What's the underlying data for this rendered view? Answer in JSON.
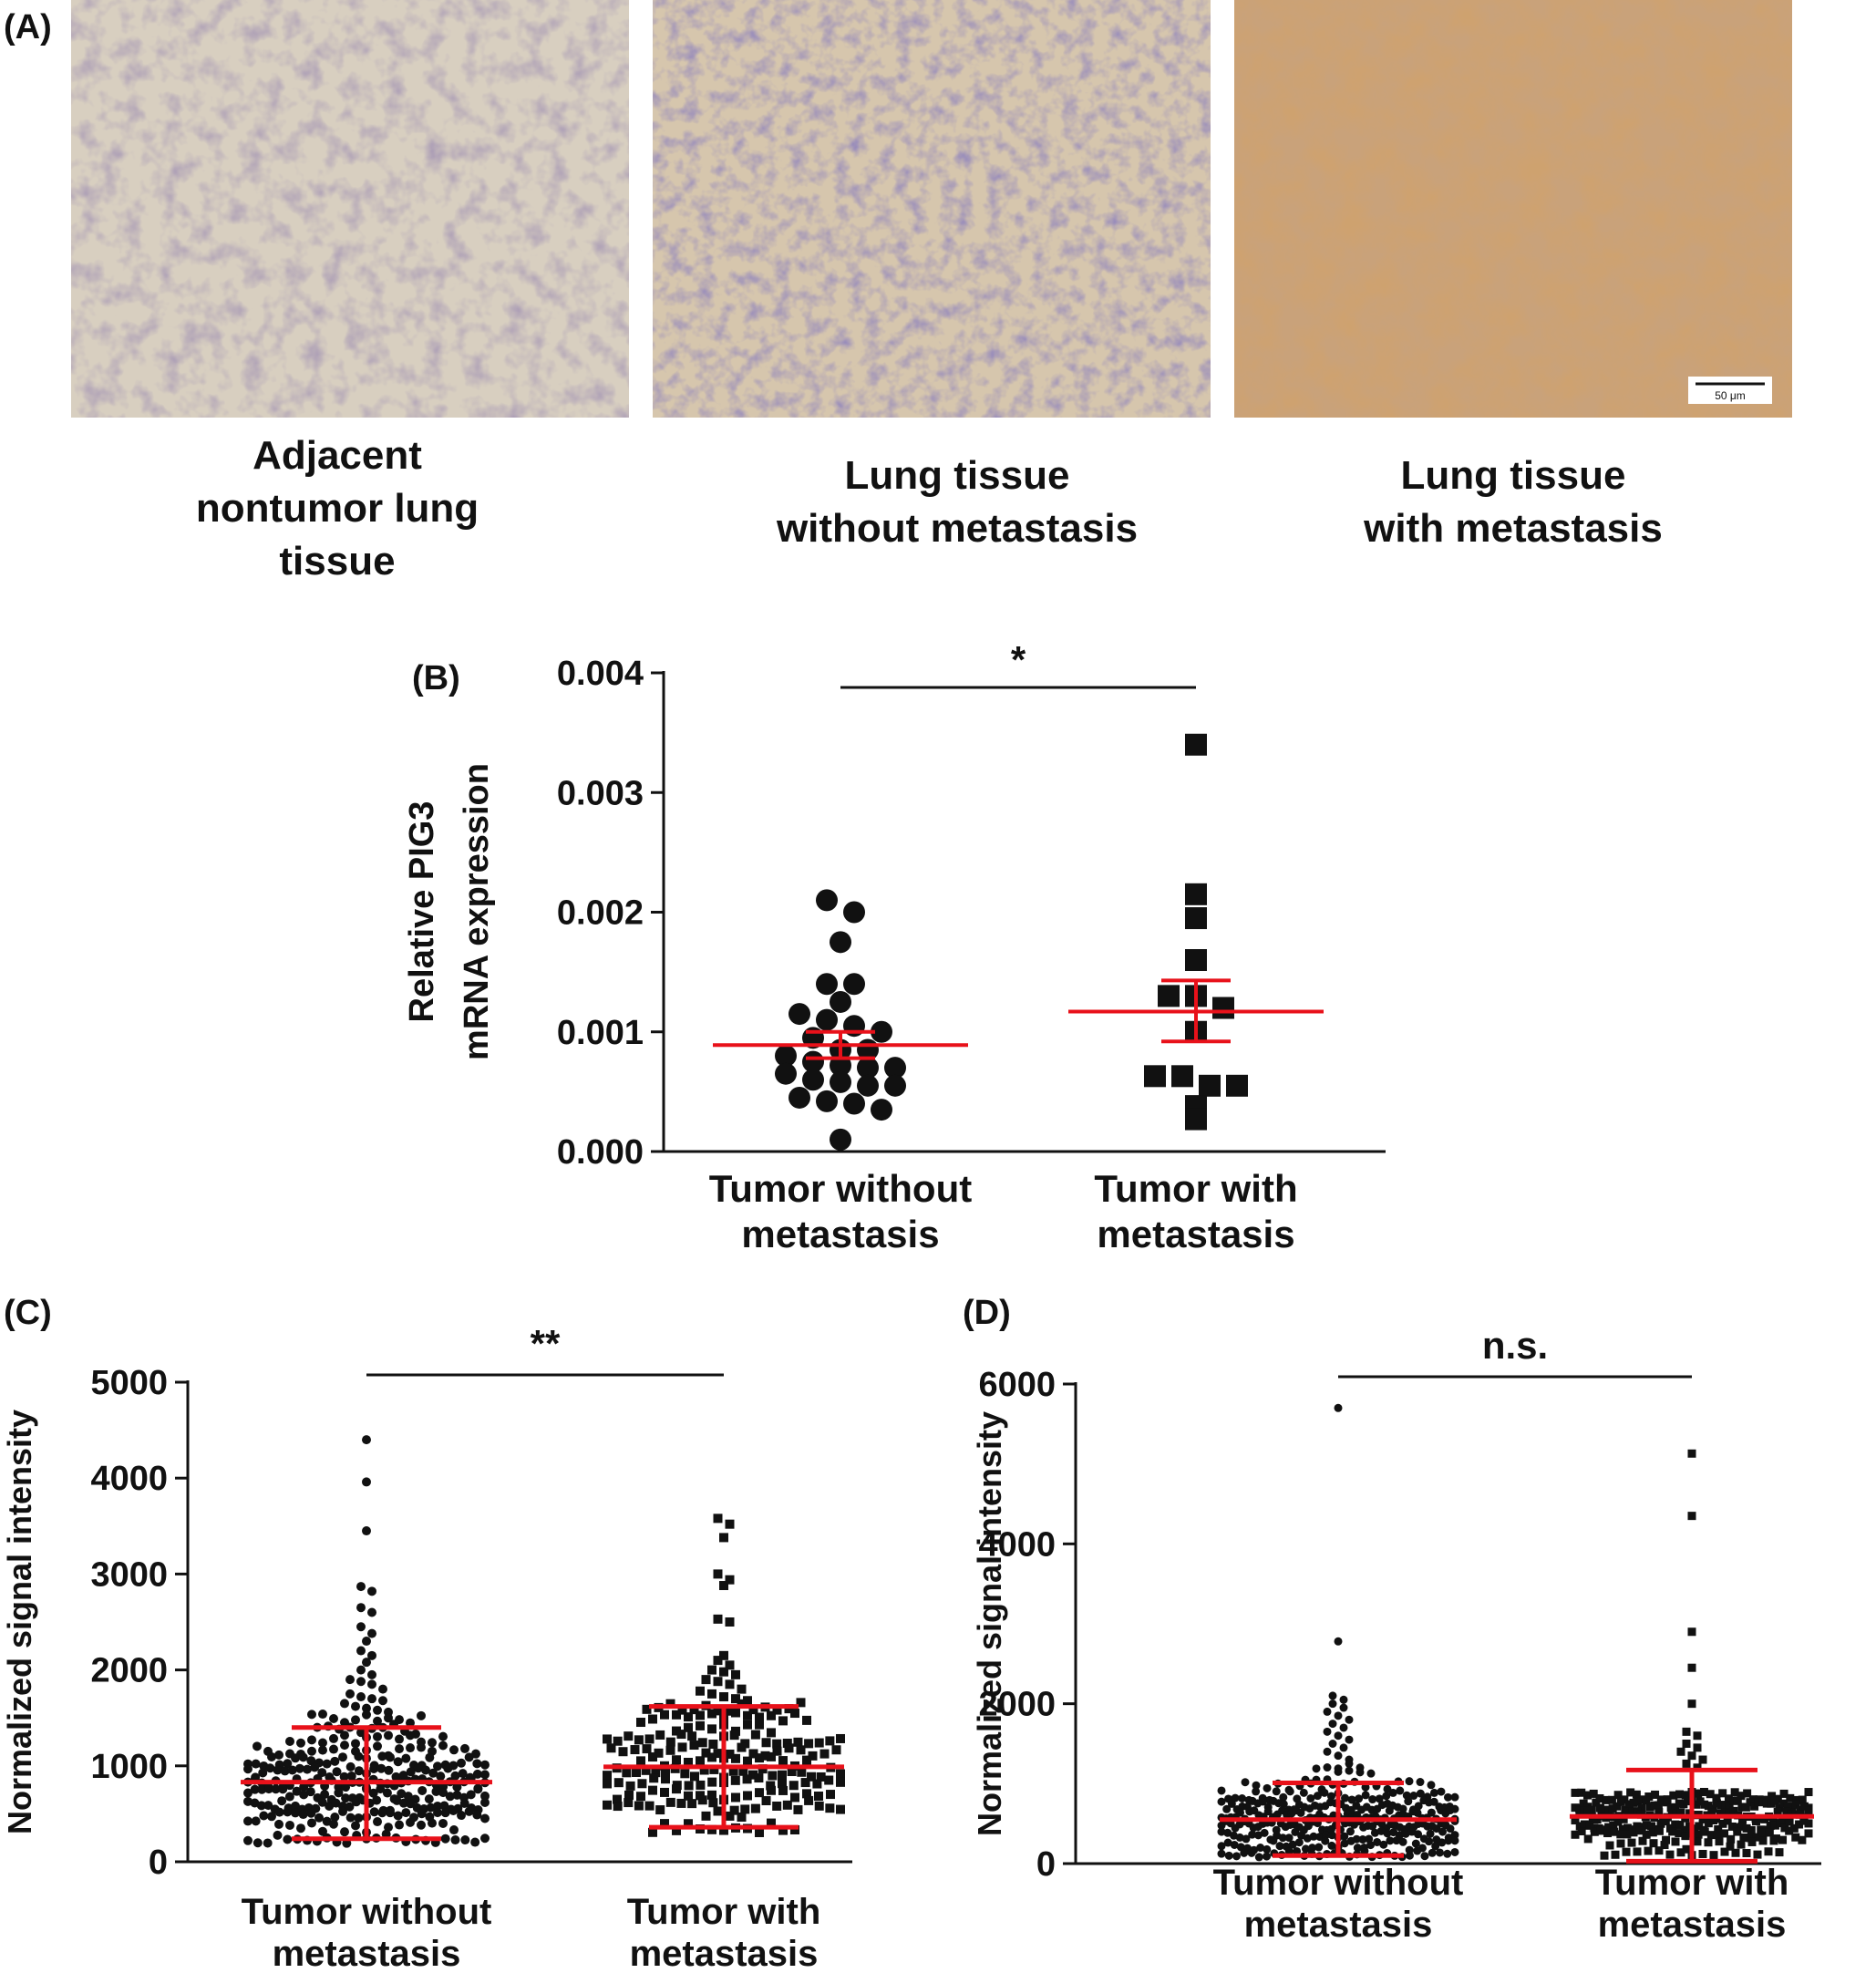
{
  "colors": {
    "accent": "#e8111a",
    "ink": "#111111"
  },
  "panel_a": {
    "letter": "(A)",
    "images": [
      {
        "caption_lines": [
          "Adjacent",
          "nontumor lung",
          "tissue"
        ]
      },
      {
        "caption_lines": [
          "Lung tissue",
          "without metastasis"
        ]
      },
      {
        "caption_lines": [
          "Lung tissue",
          "with metastasis"
        ],
        "scalebar_label": "50 μm"
      }
    ]
  },
  "chart_data": [
    {
      "panel": "(B)",
      "type": "scatter",
      "ylabel_lines": [
        "Relative PIG3",
        "mRNA expression"
      ],
      "ylim": [
        0,
        0.004
      ],
      "yticks": [
        0.0,
        0.001,
        0.002,
        0.003,
        0.004
      ],
      "ytick_labels": [
        "0.000",
        "0.001",
        "0.002",
        "0.003",
        "0.004"
      ],
      "categories": [
        {
          "label_lines": [
            "Tumor without",
            "metastasis"
          ],
          "marker": "circle",
          "mean": 0.00089,
          "err_low": 0.00078,
          "err_high": 0.001,
          "values": [
            0.0021,
            0.002,
            0.00175,
            0.0014,
            0.0014,
            0.00125,
            0.00115,
            0.0011,
            0.00105,
            0.001,
            0.00095,
            0.00085,
            0.00085,
            0.0008,
            0.00075,
            0.00072,
            0.0007,
            0.0007,
            0.00065,
            0.0006,
            0.00058,
            0.00055,
            0.00055,
            0.00045,
            0.00042,
            0.0004,
            0.00035,
            0.0001
          ]
        },
        {
          "label_lines": [
            "Tumor with",
            "metastasis"
          ],
          "marker": "square",
          "mean": 0.00117,
          "err_low": 0.00092,
          "err_high": 0.00143,
          "values": [
            0.0034,
            0.00215,
            0.00195,
            0.0016,
            0.0013,
            0.0013,
            0.0012,
            0.001,
            0.00063,
            0.00063,
            0.00055,
            0.00055,
            0.00038,
            0.00027
          ]
        }
      ],
      "significance": "*"
    },
    {
      "panel": "(C)",
      "type": "scatter",
      "ylabel": "Normalized signal intensity",
      "ylim": [
        0,
        5000
      ],
      "yticks": [
        0,
        1000,
        2000,
        3000,
        4000,
        5000
      ],
      "ytick_labels": [
        "0",
        "1000",
        "2000",
        "3000",
        "4000",
        "5000"
      ],
      "categories": [
        {
          "label_lines": [
            "Tumor without",
            "metastasis"
          ],
          "marker": "circle",
          "mean": 830,
          "err_low": 240,
          "err_high": 1400,
          "outliers": [
            4400,
            3960,
            3450,
            2870,
            2820,
            2650,
            2600,
            2450,
            2380,
            2300,
            2200,
            2150,
            2080,
            2000,
            1950,
            1900,
            1880,
            1850,
            1800,
            1750,
            1720,
            1700,
            1680,
            1650,
            1620,
            1600,
            1580,
            1560
          ]
        },
        {
          "label_lines": [
            "Tumor with",
            "metastasis"
          ],
          "marker": "square",
          "mean": 990,
          "err_low": 360,
          "err_high": 1620,
          "outliers": [
            3580,
            3520,
            3380,
            3000,
            2940,
            2880,
            2530,
            2500,
            2150,
            2100,
            2050,
            2000,
            1980,
            1950,
            1900,
            1880,
            1850,
            1800,
            1780,
            1750,
            1720,
            1700,
            1680,
            1660
          ]
        }
      ],
      "significance": "**"
    },
    {
      "panel": "(D)",
      "type": "scatter",
      "ylabel": "Normalized signal intensity",
      "ylim": [
        0,
        6000
      ],
      "yticks": [
        0,
        2000,
        4000,
        6000
      ],
      "ytick_labels": [
        "0",
        "2000",
        "4000",
        "6000"
      ],
      "categories": [
        {
          "label_lines": [
            "Tumor without",
            "metastasis"
          ],
          "marker": "circle",
          "mean": 550,
          "err_low": 100,
          "err_high": 1010,
          "outliers": [
            5700,
            2780,
            2100,
            2050,
            2000,
            1950,
            1900,
            1850,
            1800,
            1750,
            1700,
            1650,
            1600,
            1550,
            1500,
            1450,
            1400,
            1350,
            1300,
            1250,
            1200
          ]
        },
        {
          "label_lines": [
            "Tumor with",
            "metastasis"
          ],
          "marker": "square",
          "mean": 590,
          "err_low": 30,
          "err_high": 1170,
          "outliers": [
            5130,
            4350,
            2900,
            2450,
            2000,
            1650,
            1600,
            1500,
            1450,
            1400,
            1350,
            1300,
            1250,
            1200
          ]
        }
      ],
      "significance": "n.s."
    }
  ]
}
